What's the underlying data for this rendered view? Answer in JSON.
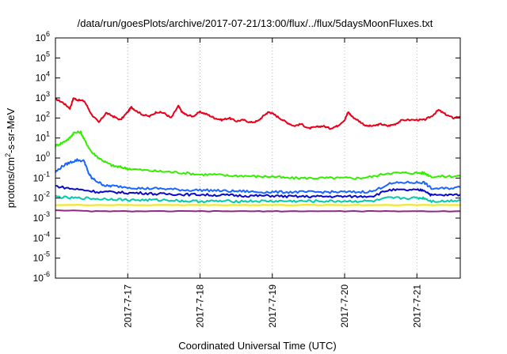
{
  "chart_data": {
    "type": "line",
    "title": "/data/run/goesPlots/archive/2017-07-21/13:00/flux/../flux/5daysMoonFluxes.txt",
    "xlabel": "Coordinated Universal Time (UTC)",
    "ylabel": "protons/cm2-s-sr-MeV",
    "ylabel_parts": {
      "base": "protons/cm",
      "sup": "2",
      "rest": "-s-sr-MeV"
    },
    "yscale": "log",
    "ylim_exp": [
      -6,
      6
    ],
    "y_ticks": [
      {
        "base": "10",
        "exp": "-6"
      },
      {
        "base": "10",
        "exp": "-5"
      },
      {
        "base": "10",
        "exp": "-4"
      },
      {
        "base": "10",
        "exp": "-3"
      },
      {
        "base": "10",
        "exp": "-2"
      },
      {
        "base": "10",
        "exp": "-1"
      },
      {
        "base": "10",
        "exp": "0"
      },
      {
        "base": "10",
        "exp": "1"
      },
      {
        "base": "10",
        "exp": "2"
      },
      {
        "base": "10",
        "exp": "3"
      },
      {
        "base": "10",
        "exp": "4"
      },
      {
        "base": "10",
        "exp": "5"
      },
      {
        "base": "10",
        "exp": "6"
      }
    ],
    "x_days": [
      16,
      21.6
    ],
    "x_ticks": [
      {
        "label": "2017-7-17",
        "day": 17
      },
      {
        "label": "2017-7-18",
        "day": 18
      },
      {
        "label": "2017-7-19",
        "day": 19
      },
      {
        "label": "2017-7-20",
        "day": 20
      },
      {
        "label": "2017-7-21",
        "day": 21
      }
    ],
    "grid": true,
    "series": [
      {
        "color": "#e8001a",
        "points": [
          [
            16.0,
            900
          ],
          [
            16.1,
            600
          ],
          [
            16.2,
            300
          ],
          [
            16.25,
            1000
          ],
          [
            16.3,
            800
          ],
          [
            16.4,
            700
          ],
          [
            16.5,
            150
          ],
          [
            16.6,
            60
          ],
          [
            16.7,
            180
          ],
          [
            16.8,
            120
          ],
          [
            16.9,
            80
          ],
          [
            17.0,
            200
          ],
          [
            17.05,
            350
          ],
          [
            17.1,
            250
          ],
          [
            17.2,
            150
          ],
          [
            17.3,
            120
          ],
          [
            17.4,
            200
          ],
          [
            17.5,
            180
          ],
          [
            17.6,
            100
          ],
          [
            17.7,
            400
          ],
          [
            17.75,
            200
          ],
          [
            17.8,
            150
          ],
          [
            17.9,
            120
          ],
          [
            18.0,
            200
          ],
          [
            18.1,
            150
          ],
          [
            18.2,
            100
          ],
          [
            18.3,
            80
          ],
          [
            18.4,
            100
          ],
          [
            18.5,
            70
          ],
          [
            18.6,
            80
          ],
          [
            18.7,
            60
          ],
          [
            18.8,
            70
          ],
          [
            18.9,
            150
          ],
          [
            18.95,
            200
          ],
          [
            19.0,
            170
          ],
          [
            19.1,
            100
          ],
          [
            19.2,
            60
          ],
          [
            19.3,
            40
          ],
          [
            19.4,
            50
          ],
          [
            19.5,
            30
          ],
          [
            19.6,
            35
          ],
          [
            19.7,
            40
          ],
          [
            19.8,
            30
          ],
          [
            19.9,
            40
          ],
          [
            20.0,
            80
          ],
          [
            20.05,
            200
          ],
          [
            20.1,
            120
          ],
          [
            20.2,
            70
          ],
          [
            20.3,
            40
          ],
          [
            20.4,
            40
          ],
          [
            20.5,
            50
          ],
          [
            20.6,
            40
          ],
          [
            20.7,
            50
          ],
          [
            20.8,
            80
          ],
          [
            21.0,
            80
          ],
          [
            21.1,
            80
          ],
          [
            21.2,
            120
          ],
          [
            21.3,
            250
          ],
          [
            21.4,
            150
          ],
          [
            21.5,
            100
          ],
          [
            21.6,
            120
          ]
        ]
      },
      {
        "color": "#33ee00",
        "points": [
          [
            16.0,
            4
          ],
          [
            16.1,
            6
          ],
          [
            16.2,
            10
          ],
          [
            16.25,
            18
          ],
          [
            16.35,
            20
          ],
          [
            16.4,
            8
          ],
          [
            16.5,
            2
          ],
          [
            16.6,
            1
          ],
          [
            16.7,
            0.6
          ],
          [
            16.8,
            0.4
          ],
          [
            16.9,
            0.35
          ],
          [
            17.0,
            0.3
          ],
          [
            17.2,
            0.25
          ],
          [
            17.4,
            0.22
          ],
          [
            17.6,
            0.2
          ],
          [
            17.8,
            0.18
          ],
          [
            18.0,
            0.15
          ],
          [
            18.2,
            0.15
          ],
          [
            18.4,
            0.13
          ],
          [
            18.6,
            0.13
          ],
          [
            18.8,
            0.12
          ],
          [
            19.0,
            0.12
          ],
          [
            19.2,
            0.1
          ],
          [
            19.4,
            0.1
          ],
          [
            19.6,
            0.1
          ],
          [
            19.8,
            0.1
          ],
          [
            20.0,
            0.1
          ],
          [
            20.2,
            0.1
          ],
          [
            20.4,
            0.12
          ],
          [
            20.6,
            0.18
          ],
          [
            20.8,
            0.18
          ],
          [
            21.0,
            0.18
          ],
          [
            21.1,
            0.18
          ],
          [
            21.2,
            0.12
          ],
          [
            21.4,
            0.12
          ],
          [
            21.6,
            0.13
          ]
        ]
      },
      {
        "color": "#1a66ff",
        "points": [
          [
            16.0,
            0.2
          ],
          [
            16.1,
            0.4
          ],
          [
            16.2,
            0.6
          ],
          [
            16.3,
            0.8
          ],
          [
            16.4,
            0.7
          ],
          [
            16.45,
            0.2
          ],
          [
            16.5,
            0.1
          ],
          [
            16.6,
            0.06
          ],
          [
            16.7,
            0.04
          ],
          [
            16.8,
            0.04
          ],
          [
            17.0,
            0.035
          ],
          [
            17.2,
            0.03
          ],
          [
            17.4,
            0.03
          ],
          [
            17.6,
            0.028
          ],
          [
            17.8,
            0.025
          ],
          [
            18.0,
            0.025
          ],
          [
            18.2,
            0.024
          ],
          [
            18.4,
            0.022
          ],
          [
            18.6,
            0.022
          ],
          [
            18.8,
            0.02
          ],
          [
            19.0,
            0.02
          ],
          [
            19.2,
            0.02
          ],
          [
            19.4,
            0.02
          ],
          [
            19.6,
            0.02
          ],
          [
            19.8,
            0.02
          ],
          [
            20.0,
            0.02
          ],
          [
            20.2,
            0.02
          ],
          [
            20.4,
            0.022
          ],
          [
            20.6,
            0.05
          ],
          [
            20.8,
            0.06
          ],
          [
            21.0,
            0.06
          ],
          [
            21.1,
            0.06
          ],
          [
            21.2,
            0.03
          ],
          [
            21.4,
            0.03
          ],
          [
            21.6,
            0.035
          ]
        ]
      },
      {
        "color": "#0a0acc",
        "points": [
          [
            16.0,
            0.04
          ],
          [
            16.2,
            0.03
          ],
          [
            16.4,
            0.025
          ],
          [
            16.6,
            0.02
          ],
          [
            16.8,
            0.02
          ],
          [
            17.0,
            0.018
          ],
          [
            17.2,
            0.018
          ],
          [
            17.4,
            0.016
          ],
          [
            17.6,
            0.016
          ],
          [
            17.8,
            0.015
          ],
          [
            18.0,
            0.015
          ],
          [
            18.2,
            0.014
          ],
          [
            18.4,
            0.014
          ],
          [
            18.6,
            0.013
          ],
          [
            18.8,
            0.013
          ],
          [
            19.0,
            0.013
          ],
          [
            19.2,
            0.012
          ],
          [
            19.4,
            0.012
          ],
          [
            19.6,
            0.012
          ],
          [
            19.8,
            0.012
          ],
          [
            20.0,
            0.012
          ],
          [
            20.2,
            0.012
          ],
          [
            20.4,
            0.013
          ],
          [
            20.6,
            0.025
          ],
          [
            20.8,
            0.025
          ],
          [
            21.0,
            0.025
          ],
          [
            21.1,
            0.025
          ],
          [
            21.2,
            0.014
          ],
          [
            21.4,
            0.014
          ],
          [
            21.6,
            0.015
          ]
        ]
      },
      {
        "color": "#00ccaa",
        "points": [
          [
            16.0,
            0.012
          ],
          [
            16.2,
            0.01
          ],
          [
            16.4,
            0.01
          ],
          [
            16.6,
            0.009
          ],
          [
            16.8,
            0.009
          ],
          [
            17.0,
            0.008
          ],
          [
            17.2,
            0.008
          ],
          [
            17.4,
            0.008
          ],
          [
            17.6,
            0.008
          ],
          [
            17.8,
            0.007
          ],
          [
            18.0,
            0.007
          ],
          [
            18.2,
            0.007
          ],
          [
            18.4,
            0.007
          ],
          [
            18.6,
            0.007
          ],
          [
            18.8,
            0.007
          ],
          [
            19.0,
            0.007
          ],
          [
            19.2,
            0.007
          ],
          [
            19.4,
            0.007
          ],
          [
            19.6,
            0.007
          ],
          [
            19.8,
            0.007
          ],
          [
            20.0,
            0.007
          ],
          [
            20.2,
            0.007
          ],
          [
            20.4,
            0.007
          ],
          [
            20.6,
            0.01
          ],
          [
            20.8,
            0.01
          ],
          [
            21.0,
            0.01
          ],
          [
            21.1,
            0.01
          ],
          [
            21.2,
            0.007
          ],
          [
            21.4,
            0.007
          ],
          [
            21.6,
            0.008
          ]
        ]
      },
      {
        "color": "#f0ea00",
        "points": [
          [
            16.0,
            0.0045
          ],
          [
            16.5,
            0.0045
          ],
          [
            17.0,
            0.0045
          ],
          [
            17.5,
            0.0045
          ],
          [
            18.0,
            0.0045
          ],
          [
            18.5,
            0.0045
          ],
          [
            19.0,
            0.0045
          ],
          [
            19.5,
            0.0045
          ],
          [
            20.0,
            0.0045
          ],
          [
            20.5,
            0.0045
          ],
          [
            21.0,
            0.0045
          ],
          [
            21.6,
            0.0045
          ]
        ]
      },
      {
        "color": "#8b2c80",
        "points": [
          [
            16.0,
            0.0025
          ],
          [
            16.5,
            0.0022
          ],
          [
            17.0,
            0.0022
          ],
          [
            17.5,
            0.0022
          ],
          [
            18.0,
            0.0022
          ],
          [
            18.5,
            0.0022
          ],
          [
            19.0,
            0.0022
          ],
          [
            19.5,
            0.0022
          ],
          [
            20.0,
            0.0022
          ],
          [
            20.5,
            0.0022
          ],
          [
            21.0,
            0.0022
          ],
          [
            21.6,
            0.0022
          ]
        ]
      }
    ]
  }
}
